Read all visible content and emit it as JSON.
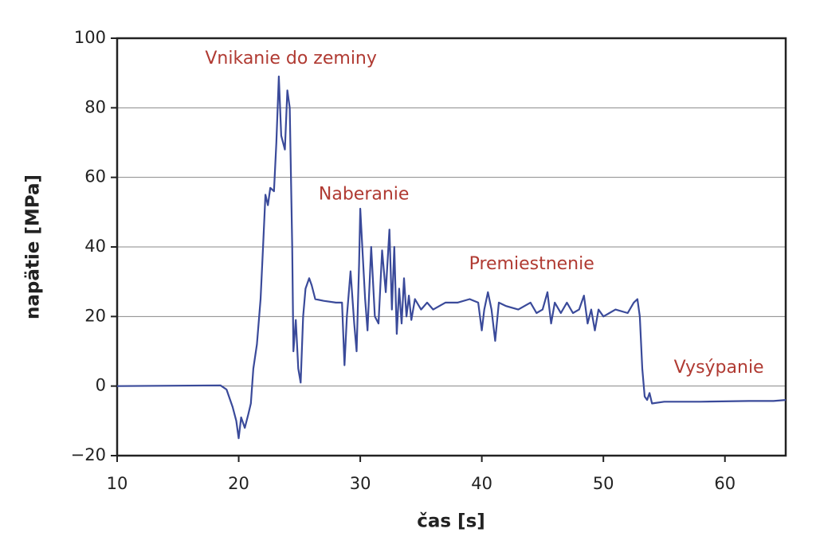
{
  "chart_data": {
    "type": "line",
    "xlabel": "čas [s]",
    "ylabel": "napätie [MPa]",
    "xlim": [
      10,
      65
    ],
    "ylim": [
      -20,
      100
    ],
    "xticks": [
      10,
      20,
      30,
      40,
      50,
      60
    ],
    "yticks": [
      {
        "value": -20,
        "label": "−20"
      },
      0,
      20,
      40,
      60,
      80,
      100
    ],
    "grid": true,
    "annotations": [
      {
        "text": "Vnikanie do zeminy",
        "x": 24.3,
        "y": 94
      },
      {
        "text": "Naberanie",
        "x": 30.3,
        "y": 55
      },
      {
        "text": "Premiestnenie",
        "x": 44.1,
        "y": 35
      },
      {
        "text": "Vysýpanie",
        "x": 59.5,
        "y": 5.2
      }
    ],
    "series": [
      {
        "name": "napätie",
        "color": "#3a4a9a",
        "x": [
          10,
          18.5,
          19,
          19.5,
          19.8,
          20,
          20.2,
          20.5,
          20.8,
          21,
          21.2,
          21.5,
          21.8,
          22,
          22.2,
          22.4,
          22.6,
          22.9,
          23.1,
          23.3,
          23.5,
          23.8,
          24,
          24.2,
          24.4,
          24.5,
          24.7,
          24.9,
          25.1,
          25.3,
          25.5,
          25.8,
          26,
          26.3,
          27,
          28,
          28.5,
          28.7,
          28.9,
          29.2,
          29.5,
          29.7,
          29.9,
          30,
          30.2,
          30.4,
          30.6,
          30.9,
          31.2,
          31.5,
          31.8,
          32.1,
          32.4,
          32.6,
          32.8,
          33,
          33.2,
          33.4,
          33.6,
          33.8,
          34,
          34.2,
          34.5,
          35,
          35.5,
          36,
          37,
          38,
          39,
          39.7,
          40,
          40.2,
          40.5,
          40.8,
          41.1,
          41.4,
          42,
          43,
          44,
          44.5,
          45,
          45.4,
          45.7,
          46,
          46.5,
          47,
          47.5,
          48,
          48.4,
          48.7,
          49,
          49.3,
          49.6,
          50,
          51,
          52,
          52.5,
          52.8,
          53,
          53.2,
          53.4,
          53.6,
          53.8,
          54,
          55,
          58,
          62,
          64,
          65
        ],
        "values": [
          0,
          0.2,
          -1,
          -6,
          -10,
          -15,
          -9,
          -12,
          -8,
          -5,
          5,
          12,
          25,
          40,
          55,
          52,
          57,
          56,
          70,
          89,
          72,
          68,
          85,
          80,
          40,
          10,
          19,
          5,
          1,
          20,
          28,
          31,
          29,
          25,
          24.5,
          24,
          24,
          6,
          20,
          33,
          18,
          10,
          35,
          51,
          38,
          25,
          16,
          40,
          20,
          18,
          39,
          27,
          45,
          22,
          40,
          15,
          28,
          18,
          31,
          20,
          26,
          19,
          25,
          22,
          24,
          22,
          24,
          24,
          25,
          24,
          16,
          22,
          27,
          22,
          13,
          24,
          23,
          22,
          24,
          21,
          22,
          27,
          18,
          24,
          21,
          24,
          21,
          22,
          26,
          18,
          22,
          16,
          22,
          20,
          22,
          21,
          24,
          25,
          20,
          5,
          -3,
          -4,
          -2,
          -5,
          -4.5,
          -4.5,
          -4.3,
          -4.3,
          -4
        ]
      }
    ]
  }
}
